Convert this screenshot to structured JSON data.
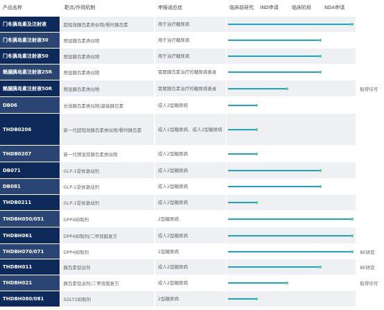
{
  "headers": [
    "产品名称",
    "靶点/作用机制",
    "申报适应症",
    "临床前研究",
    "IND申请",
    "临床阶段",
    "NDA申请"
  ],
  "stage_colors": {
    "bar": "#1aa3c9",
    "dot": "#54d17e",
    "row_dark": "#0d2a5a",
    "row_light": "#2a4574"
  },
  "rows": [
    {
      "name": "门冬胰岛素及注射液",
      "target": "超短效胰岛素类似物/餐时胰岛素",
      "indication": "用于治疗糖尿病",
      "progress": 0.97,
      "note": ""
    },
    {
      "name": "门冬胰岛素注射液30",
      "target": "预混胰岛素类似物",
      "indication": "用于治疗糖尿病",
      "progress": 0.72,
      "note": ""
    },
    {
      "name": "门冬胰岛素注射液50",
      "target": "预混胰岛素类似物",
      "indication": "用于治疗糖尿病",
      "progress": 0.72,
      "note": ""
    },
    {
      "name": "赖脯胰岛素注射液25R",
      "target": "预混胰岛素类似物",
      "indication": "需要胰岛素治疗的糖尿病患者",
      "progress": 0.72,
      "note": ""
    },
    {
      "name": "赖脯胰岛素注射液50R",
      "target": "预混胰岛素类似物",
      "indication": "需要胰岛素治疗的糖尿病患者",
      "progress": 0.46,
      "note": "取得许可"
    },
    {
      "name": "DB06",
      "target": "长效胰岛素类似物/基础胰岛素",
      "indication": "成人2型糖尿病",
      "progress": 0.22,
      "note": ""
    },
    {
      "name": "THDB0206",
      "target": "新一代超短效胰岛素类似物/餐时胰岛素",
      "indication": "成人1型糖尿病、成人2型糖尿病",
      "progress": 0.22,
      "note": ""
    },
    {
      "name": "THDB0207",
      "target": "新一代预混双胰岛素类似物",
      "indication": "成人2型糖尿病",
      "progress": 0.22,
      "note": ""
    },
    {
      "name": "DB071",
      "target": "GLP-1受体激动剂",
      "indication": "成人2型糖尿病",
      "progress": 0.72,
      "note": ""
    },
    {
      "name": "DB081",
      "target": "GLP-1受体激动剂",
      "indication": "成人2型糖尿病",
      "progress": 0.72,
      "note": ""
    },
    {
      "name": "THDB0211",
      "target": "GLP-1受体激动剂",
      "indication": "成人2型糖尿病",
      "progress": 0.22,
      "note": ""
    },
    {
      "name": "THDBH050/051",
      "target": "DPP4抑制剂",
      "indication": "2型糖尿病",
      "progress": 0.97,
      "note": ""
    },
    {
      "name": "THDBH061",
      "target": "DPP4抑制剂/二甲双胍复方",
      "indication": "成人2型糖尿病",
      "progress": 0.97,
      "note": ""
    },
    {
      "name": "THDBH070/071",
      "target": "DPP4抑制剂",
      "indication": "2型糖尿病",
      "progress": 0.97,
      "note": "BE研究"
    },
    {
      "name": "THDBH011",
      "target": "胰岛素促泌剂",
      "indication": "成人2型糖尿病",
      "progress": 0.72,
      "note": "BE研究"
    },
    {
      "name": "THDBH021",
      "target": "胰岛素促泌剂/二甲双胍复方",
      "indication": "成人2型糖尿病",
      "progress": 0.46,
      "note": "取得许可"
    },
    {
      "name": "THDBH080/081",
      "target": "SGLT2抑制剂",
      "indication": "2型糖尿病",
      "progress": 0.22,
      "note": ""
    }
  ]
}
